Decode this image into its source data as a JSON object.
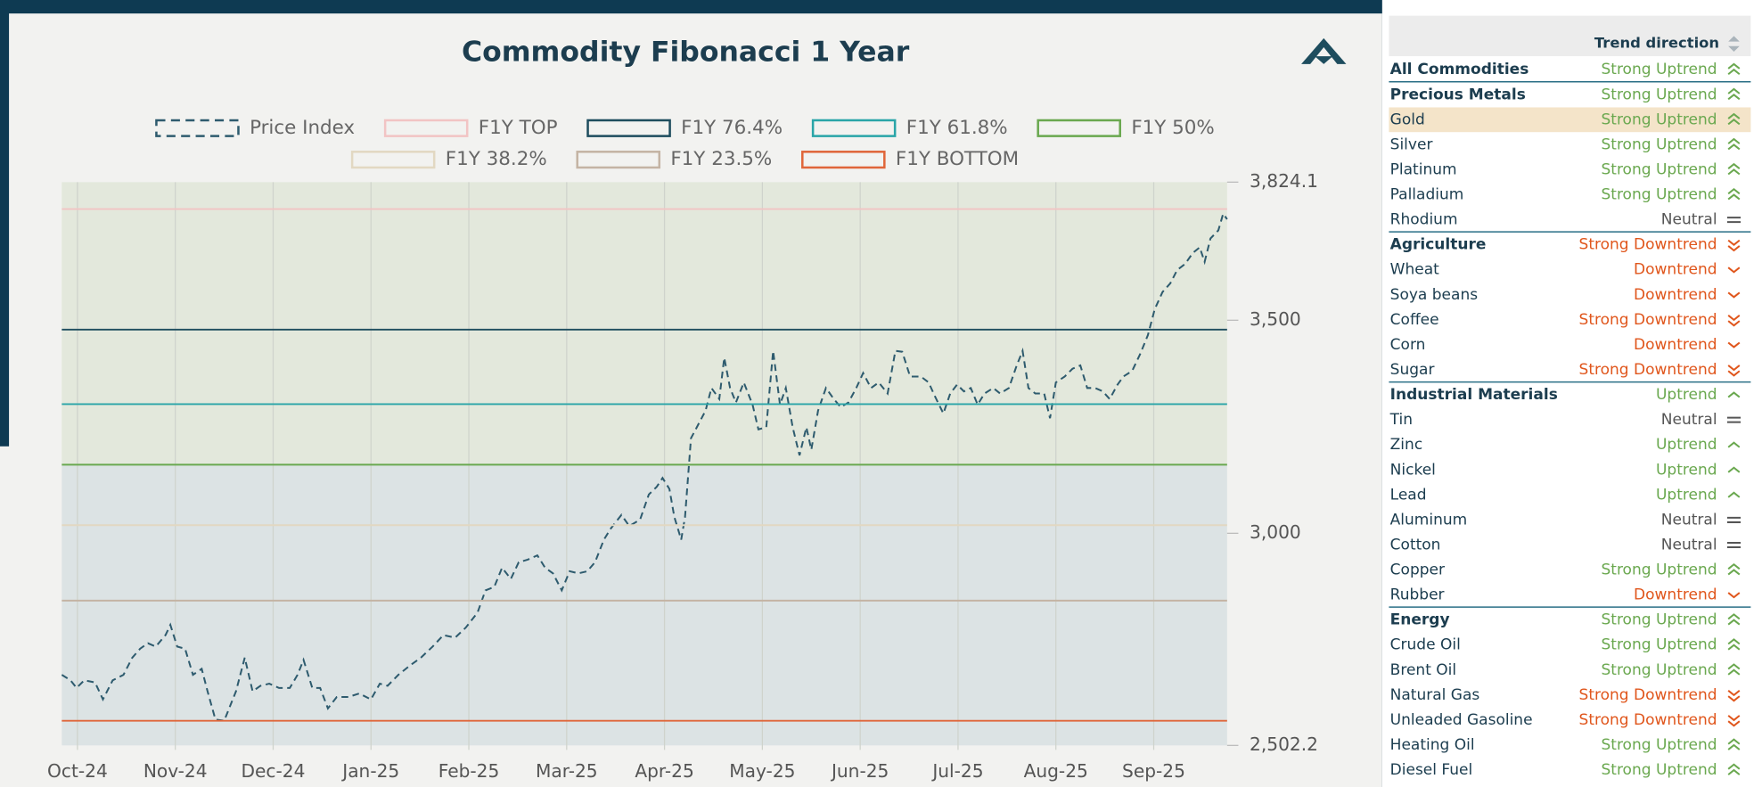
{
  "chart_data": {
    "type": "line",
    "title": "Commodity Fibonacci 1 Year",
    "xlim": [
      -0.16,
      11.75
    ],
    "xticks": [
      {
        "value": 0,
        "label": "Oct-24"
      },
      {
        "value": 1,
        "label": "Nov-24"
      },
      {
        "value": 2,
        "label": "Dec-24"
      },
      {
        "value": 3,
        "label": "Jan-25"
      },
      {
        "value": 4,
        "label": "Feb-25"
      },
      {
        "value": 5,
        "label": "Mar-25"
      },
      {
        "value": 6,
        "label": "Apr-25"
      },
      {
        "value": 7,
        "label": "May-25"
      },
      {
        "value": 8,
        "label": "Jun-25"
      },
      {
        "value": 9,
        "label": "Jul-25"
      },
      {
        "value": 10,
        "label": "Aug-25"
      },
      {
        "value": 11,
        "label": "Sep-25"
      }
    ],
    "ylim": [
      2502.2,
      3824.1
    ],
    "yticks": [
      {
        "value": 2502.2,
        "label": "2,502.2"
      },
      {
        "value": 3000,
        "label": "3,000"
      },
      {
        "value": 3500,
        "label": "3,500"
      },
      {
        "value": 3824.1,
        "label": "3,824.1"
      }
    ],
    "upper_band_color": "#e3e8dc",
    "lower_band_color": "#dce3e4",
    "series": [
      {
        "name": "Price Index",
        "color": "#2e5b6e",
        "dash": true,
        "x": [
          -0.16,
          -0.07,
          -0.01,
          0.07,
          0.18,
          0.26,
          0.36,
          0.47,
          0.56,
          0.64,
          0.72,
          0.8,
          0.9,
          0.95,
          1.02,
          1.1,
          1.18,
          1.27,
          1.33,
          1.41,
          1.5,
          1.62,
          1.71,
          1.79,
          1.87,
          1.96,
          2.06,
          2.17,
          2.25,
          2.31,
          2.4,
          2.48,
          2.56,
          2.65,
          2.77,
          2.88,
          3,
          3.09,
          3.17,
          3.28,
          3.4,
          3.51,
          3.63,
          3.74,
          3.86,
          3.97,
          4.09,
          4.17,
          4.26,
          4.34,
          4.43,
          4.51,
          4.6,
          4.7,
          4.78,
          4.86,
          4.95,
          5.03,
          5.12,
          5.21,
          5.29,
          5.38,
          5.45,
          5.56,
          5.64,
          5.75,
          5.84,
          5.92,
          5.98,
          6.05,
          6.1,
          6.17,
          6.21,
          6.27,
          6.33,
          6.42,
          6.48,
          6.56,
          6.61,
          6.67,
          6.73,
          6.81,
          6.9,
          6.96,
          7.04,
          7.11,
          7.18,
          7.24,
          7.31,
          7.38,
          7.45,
          7.5,
          7.57,
          7.65,
          7.73,
          7.8,
          7.88,
          7.96,
          8.03,
          8.11,
          8.19,
          8.28,
          8.36,
          8.43,
          8.51,
          8.62,
          8.7,
          8.76,
          8.85,
          8.92,
          8.99,
          9.06,
          9.13,
          9.2,
          9.27,
          9.36,
          9.43,
          9.52,
          9.6,
          9.66,
          9.72,
          9.79,
          9.88,
          9.94,
          10,
          10.09,
          10.17,
          10.25,
          10.32,
          10.4,
          10.48,
          10.55,
          10.63,
          10.69,
          10.78,
          10.86,
          10.94,
          11.01,
          11.09,
          11.17,
          11.24,
          11.32,
          11.4,
          11.47,
          11.52,
          11.58,
          11.66,
          11.71,
          11.75
        ],
        "values": [
          2668,
          2655,
          2637,
          2655,
          2650,
          2610,
          2655,
          2668,
          2708,
          2729,
          2742,
          2734,
          2761,
          2785,
          2734,
          2729,
          2668,
          2682,
          2629,
          2563,
          2560,
          2629,
          2708,
          2629,
          2642,
          2647,
          2637,
          2637,
          2668,
          2703,
          2637,
          2637,
          2589,
          2616,
          2616,
          2624,
          2610,
          2647,
          2642,
          2668,
          2690,
          2708,
          2734,
          2761,
          2755,
          2779,
          2814,
          2866,
          2874,
          2919,
          2893,
          2932,
          2938,
          2948,
          2919,
          2906,
          2866,
          2911,
          2906,
          2911,
          2932,
          2985,
          3011,
          3043,
          3017,
          3032,
          3091,
          3109,
          3130,
          3104,
          3038,
          2985,
          3038,
          3223,
          3249,
          3288,
          3341,
          3315,
          3412,
          3341,
          3307,
          3354,
          3302,
          3244,
          3249,
          3428,
          3302,
          3341,
          3249,
          3183,
          3249,
          3196,
          3288,
          3341,
          3315,
          3296,
          3307,
          3341,
          3376,
          3341,
          3354,
          3328,
          3428,
          3426,
          3368,
          3368,
          3354,
          3323,
          3281,
          3328,
          3349,
          3333,
          3341,
          3302,
          3328,
          3341,
          3328,
          3341,
          3394,
          3428,
          3341,
          3328,
          3328,
          3270,
          3354,
          3368,
          3386,
          3394,
          3341,
          3341,
          3333,
          3315,
          3349,
          3368,
          3381,
          3420,
          3465,
          3526,
          3566,
          3587,
          3618,
          3632,
          3658,
          3671,
          3637,
          3692,
          3711,
          3750,
          3737
        ]
      },
      {
        "name": "F1Y TOP",
        "color": "#f2c4c4",
        "level": 3761
      },
      {
        "name": "F1Y 76.4%",
        "color": "#1e4d5e",
        "level": 3478
      },
      {
        "name": "F1Y 61.8%",
        "color": "#2aa5a8",
        "level": 3303
      },
      {
        "name": "F1Y 50%",
        "color": "#6aa84f",
        "level": 3161
      },
      {
        "name": "F1Y 38.2%",
        "color": "#e2d8c2",
        "level": 3019
      },
      {
        "name": "F1Y 23.5%",
        "color": "#c4b4a4",
        "level": 2842
      },
      {
        "name": "F1Y BOTTOM",
        "color": "#e0663a",
        "level": 2560
      }
    ]
  },
  "table": {
    "header": "Trend direction",
    "rows": [
      {
        "name": "All Commodities",
        "trend": "Strong Uptrend",
        "color": "#6aa84f",
        "icon": "double-up",
        "header": true
      },
      {
        "name": "Precious Metals",
        "trend": "Strong Uptrend",
        "color": "#6aa84f",
        "icon": "double-up",
        "header": true
      },
      {
        "name": "Gold",
        "trend": "Strong Uptrend",
        "color": "#6aa84f",
        "icon": "double-up",
        "highlight": true
      },
      {
        "name": "Silver",
        "trend": "Strong Uptrend",
        "color": "#6aa84f",
        "icon": "double-up"
      },
      {
        "name": "Platinum",
        "trend": "Strong Uptrend",
        "color": "#6aa84f",
        "icon": "double-up"
      },
      {
        "name": "Palladium",
        "trend": "Strong Uptrend",
        "color": "#6aa84f",
        "icon": "double-up"
      },
      {
        "name": "Rhodium",
        "trend": "Neutral",
        "color": "#555555",
        "icon": "equal"
      },
      {
        "name": "Agriculture",
        "trend": "Strong Downtrend",
        "color": "#e0561c",
        "icon": "double-down",
        "header": true
      },
      {
        "name": "Wheat",
        "trend": "Downtrend",
        "color": "#e0561c",
        "icon": "down"
      },
      {
        "name": "Soya beans",
        "trend": "Downtrend",
        "color": "#e0561c",
        "icon": "down"
      },
      {
        "name": "Coffee",
        "trend": "Strong Downtrend",
        "color": "#e0561c",
        "icon": "double-down"
      },
      {
        "name": "Corn",
        "trend": "Downtrend",
        "color": "#e0561c",
        "icon": "down"
      },
      {
        "name": "Sugar",
        "trend": "Strong Downtrend",
        "color": "#e0561c",
        "icon": "double-down"
      },
      {
        "name": "Industrial Materials",
        "trend": "Uptrend",
        "color": "#6aa84f",
        "icon": "up",
        "header": true
      },
      {
        "name": "Tin",
        "trend": "Neutral",
        "color": "#555555",
        "icon": "equal"
      },
      {
        "name": "Zinc",
        "trend": "Uptrend",
        "color": "#6aa84f",
        "icon": "up"
      },
      {
        "name": "Nickel",
        "trend": "Uptrend",
        "color": "#6aa84f",
        "icon": "up"
      },
      {
        "name": "Lead",
        "trend": "Uptrend",
        "color": "#6aa84f",
        "icon": "up"
      },
      {
        "name": "Aluminum",
        "trend": "Neutral",
        "color": "#555555",
        "icon": "equal"
      },
      {
        "name": "Cotton",
        "trend": "Neutral",
        "color": "#555555",
        "icon": "equal"
      },
      {
        "name": "Copper",
        "trend": "Strong Uptrend",
        "color": "#6aa84f",
        "icon": "double-up"
      },
      {
        "name": "Rubber",
        "trend": "Downtrend",
        "color": "#e0561c",
        "icon": "down"
      },
      {
        "name": "Energy",
        "trend": "Strong Uptrend",
        "color": "#6aa84f",
        "icon": "double-up",
        "header": true
      },
      {
        "name": "Crude Oil",
        "trend": "Strong Uptrend",
        "color": "#6aa84f",
        "icon": "double-up"
      },
      {
        "name": "Brent Oil",
        "trend": "Strong Uptrend",
        "color": "#6aa84f",
        "icon": "double-up"
      },
      {
        "name": "Natural Gas",
        "trend": "Strong Downtrend",
        "color": "#e0561c",
        "icon": "double-down"
      },
      {
        "name": "Unleaded Gasoline",
        "trend": "Strong Downtrend",
        "color": "#e0561c",
        "icon": "double-down"
      },
      {
        "name": "Heating Oil",
        "trend": "Strong Uptrend",
        "color": "#6aa84f",
        "icon": "double-up"
      },
      {
        "name": "Diesel Fuel",
        "trend": "Strong Uptrend",
        "color": "#6aa84f",
        "icon": "double-up"
      }
    ]
  }
}
